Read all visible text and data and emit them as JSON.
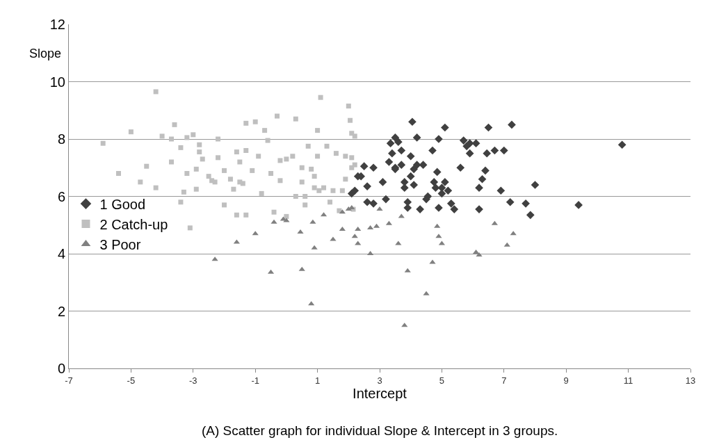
{
  "chart_data": {
    "type": "scatter",
    "xlabel": "Intercept",
    "ylabel": "Slope",
    "annotations": [
      "(A) Scatter graph for individual Slope & Intercept in 3 groups."
    ],
    "xlim": [
      -7,
      13
    ],
    "xticks": [
      -7,
      -5,
      -3,
      -1,
      1,
      3,
      5,
      7,
      9,
      11,
      13
    ],
    "ylim": [
      0,
      12
    ],
    "yticks": [
      0,
      2,
      4,
      6,
      8,
      10,
      12
    ],
    "grid": "y",
    "legend": "left",
    "series": [
      {
        "name": "1 Good",
        "color": "#404040",
        "marker": "diamond",
        "x": [
          2.1,
          2.2,
          2.3,
          2.4,
          2.5,
          2.6,
          2.6,
          2.8,
          2.8,
          3.1,
          3.2,
          3.3,
          3.35,
          3.4,
          3.5,
          3.5,
          3.5,
          3.6,
          3.7,
          3.7,
          3.8,
          3.8,
          3.9,
          3.9,
          4.0,
          4.0,
          4.05,
          4.1,
          4.1,
          4.2,
          4.2,
          4.3,
          4.4,
          4.5,
          4.55,
          4.7,
          4.75,
          4.8,
          4.85,
          4.9,
          4.9,
          5.0,
          5.0,
          5.1,
          5.1,
          5.2,
          5.3,
          5.4,
          5.6,
          5.7,
          5.8,
          5.9,
          5.9,
          6.1,
          6.2,
          6.2,
          6.3,
          6.4,
          6.45,
          6.5,
          6.7,
          6.9,
          7.0,
          7.2,
          7.25,
          7.7,
          7.85,
          8.0,
          9.4,
          10.8
        ],
        "values": [
          6.1,
          6.2,
          6.7,
          6.7,
          7.05,
          6.35,
          5.8,
          7.0,
          5.75,
          6.5,
          5.9,
          7.2,
          7.85,
          7.5,
          7.0,
          6.95,
          8.05,
          7.9,
          7.6,
          7.1,
          6.5,
          6.3,
          5.8,
          5.6,
          7.4,
          6.7,
          8.6,
          6.95,
          6.4,
          7.1,
          8.05,
          5.55,
          7.1,
          5.9,
          6.0,
          7.6,
          6.5,
          6.3,
          6.85,
          5.6,
          8.0,
          6.3,
          6.1,
          8.4,
          6.5,
          6.2,
          5.75,
          5.55,
          7.0,
          7.95,
          7.75,
          7.5,
          7.85,
          7.85,
          6.3,
          5.55,
          6.6,
          6.9,
          7.5,
          8.4,
          7.6,
          6.2,
          7.6,
          5.8,
          8.5,
          5.75,
          5.35,
          6.4,
          5.7,
          7.8
        ]
      },
      {
        "name": "2 Catch-up",
        "color": "#bfbfbf",
        "marker": "square",
        "x": [
          -5.9,
          -5.4,
          -5.0,
          -4.7,
          -4.5,
          -4.2,
          -4.2,
          -4.0,
          -3.7,
          -3.7,
          -3.6,
          -3.4,
          -3.4,
          -3.3,
          -3.2,
          -3.2,
          -3.1,
          -3.0,
          -2.9,
          -2.9,
          -2.8,
          -2.8,
          -2.7,
          -2.5,
          -2.4,
          -2.3,
          -2.2,
          -2.2,
          -2.0,
          -2.0,
          -1.8,
          -1.7,
          -1.6,
          -1.6,
          -1.5,
          -1.5,
          -1.4,
          -1.3,
          -1.3,
          -1.3,
          -1.1,
          -1.0,
          -0.9,
          -0.8,
          -0.7,
          -0.6,
          -0.5,
          -0.4,
          -0.3,
          -0.2,
          -0.2,
          0.0,
          0.0,
          0.2,
          0.3,
          0.3,
          0.5,
          0.5,
          0.6,
          0.6,
          0.7,
          0.8,
          0.9,
          0.9,
          1.0,
          1.0,
          1.05,
          1.1,
          1.2,
          1.3,
          1.4,
          1.5,
          1.6,
          1.7,
          1.8,
          1.9,
          1.9,
          2.0,
          2.05,
          2.1,
          2.1,
          2.1,
          2.15,
          2.2,
          2.2
        ],
        "values": [
          7.85,
          6.8,
          8.25,
          6.5,
          7.05,
          9.65,
          6.3,
          8.1,
          7.2,
          8.0,
          8.5,
          5.8,
          7.7,
          6.15,
          6.8,
          8.05,
          4.9,
          8.15,
          6.25,
          6.95,
          7.8,
          7.55,
          7.3,
          6.7,
          6.55,
          6.5,
          7.35,
          8.0,
          5.7,
          6.9,
          6.6,
          6.25,
          7.55,
          5.35,
          6.5,
          7.2,
          6.45,
          5.35,
          7.6,
          8.55,
          6.9,
          8.6,
          7.4,
          6.1,
          8.3,
          7.95,
          6.8,
          5.45,
          8.8,
          7.25,
          6.55,
          7.3,
          5.3,
          7.4,
          8.7,
          6.0,
          7.0,
          6.5,
          6.0,
          5.7,
          7.75,
          6.95,
          6.7,
          6.3,
          8.3,
          7.4,
          6.2,
          9.45,
          6.3,
          7.75,
          5.8,
          6.2,
          7.5,
          5.5,
          6.2,
          7.4,
          6.6,
          9.15,
          8.65,
          8.2,
          7.35,
          7.0,
          5.55,
          7.1,
          8.1
        ]
      },
      {
        "name": "3 Poor",
        "color": "#808080",
        "marker": "triangle",
        "x": [
          -2.3,
          -1.6,
          -1.0,
          -0.5,
          -0.4,
          -0.1,
          0.0,
          0.45,
          0.5,
          0.8,
          0.85,
          0.9,
          1.2,
          1.5,
          1.8,
          1.8,
          2.0,
          2.1,
          2.2,
          2.3,
          2.3,
          2.7,
          2.7,
          2.9,
          3.0,
          3.3,
          3.6,
          3.7,
          3.8,
          3.9,
          4.5,
          4.7,
          4.85,
          4.9,
          5.0,
          6.1,
          6.2,
          6.7,
          7.1,
          7.3
        ],
        "values": [
          3.8,
          4.4,
          4.7,
          3.35,
          5.1,
          5.2,
          5.15,
          4.75,
          3.45,
          2.25,
          5.1,
          4.2,
          5.35,
          4.5,
          4.85,
          5.45,
          5.55,
          5.6,
          4.6,
          4.35,
          4.85,
          4.0,
          4.9,
          4.95,
          5.55,
          5.05,
          4.35,
          5.3,
          1.5,
          3.4,
          2.6,
          3.7,
          4.95,
          4.6,
          4.35,
          4.05,
          3.95,
          5.05,
          4.3,
          4.7
        ]
      }
    ]
  }
}
